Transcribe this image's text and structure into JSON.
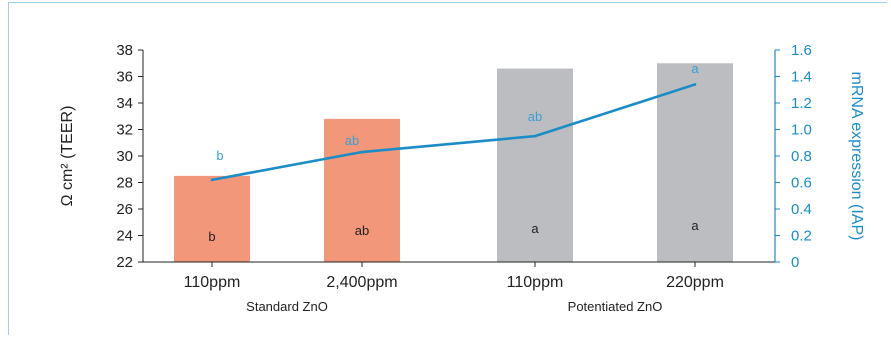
{
  "chart_data": {
    "type": "bar",
    "categories": [
      "110ppm",
      "2,400ppm",
      "110ppm",
      "220ppm"
    ],
    "groups": [
      {
        "label": "Standard ZnO",
        "categories": [
          0,
          1
        ]
      },
      {
        "label": "Potentiated ZnO",
        "categories": [
          2,
          3
        ]
      }
    ],
    "bar_series": {
      "values": [
        28.5,
        32.8,
        36.6,
        37.0
      ],
      "letters": [
        "b",
        "ab",
        "a",
        "a"
      ],
      "colors": [
        "#f3977a",
        "#f3977a",
        "#bcbdc0",
        "#bcbdc0"
      ]
    },
    "line_series": {
      "values": [
        0.62,
        0.83,
        0.95,
        1.34
      ],
      "letters": [
        "b",
        "ab",
        "ab",
        "a"
      ],
      "color": "#1b8cc6"
    },
    "y_left": {
      "label": "Ω cm² (TEER)",
      "ylim": [
        22,
        38
      ],
      "ticks": [
        "22",
        "24",
        "26",
        "28",
        "30",
        "32",
        "34",
        "36",
        "38"
      ]
    },
    "y_right": {
      "label": "mRNA expression (IAP)",
      "ylim": [
        0,
        1.6
      ],
      "ticks": [
        "0",
        "0.2",
        "0.4",
        "0.6",
        "0.8",
        "1.0",
        "1.2",
        "1.4",
        "1.6"
      ]
    },
    "grid": false,
    "legend": "none"
  }
}
